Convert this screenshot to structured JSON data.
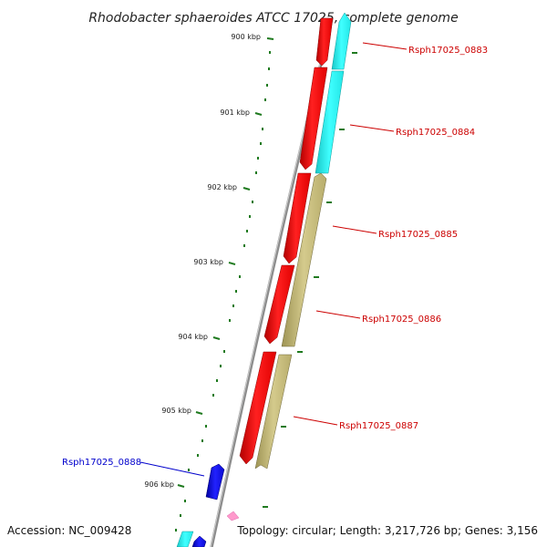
{
  "title": "Rhodobacter sphaeroides ATCC 17025, complete genome",
  "footer": {
    "accession": "Accession: NC_009428",
    "summary": "Topology: circular; Length: 3,217,726 bp; Genes: 3,156"
  },
  "colors": {
    "backbone": "#8c8c8c",
    "tick": "#1f7a1f",
    "forward_gene": "#ff1a1a",
    "cyan_gene": "#33ffff",
    "olive_gene": "#c8bd7e",
    "blue_gene": "#1111dd",
    "pink_gene": "#ff99cc",
    "label_red": "#cc0000",
    "label_blue": "#0000cc"
  },
  "ticks": [
    {
      "label": "900 kbp"
    },
    {
      "label": "901 kbp"
    },
    {
      "label": "902 kbp"
    },
    {
      "label": "903 kbp"
    },
    {
      "label": "904 kbp"
    },
    {
      "label": "905 kbp"
    },
    {
      "label": "906 kbp"
    }
  ],
  "gene_labels": [
    {
      "text": "Rsph17025_0883",
      "color": "#cc0000"
    },
    {
      "text": "Rsph17025_0884",
      "color": "#cc0000"
    },
    {
      "text": "Rsph17025_0885",
      "color": "#cc0000"
    },
    {
      "text": "Rsph17025_0886",
      "color": "#cc0000"
    },
    {
      "text": "Rsph17025_0887",
      "color": "#cc0000"
    },
    {
      "text": "Rsph17025_0888",
      "color": "#0000cc"
    }
  ]
}
